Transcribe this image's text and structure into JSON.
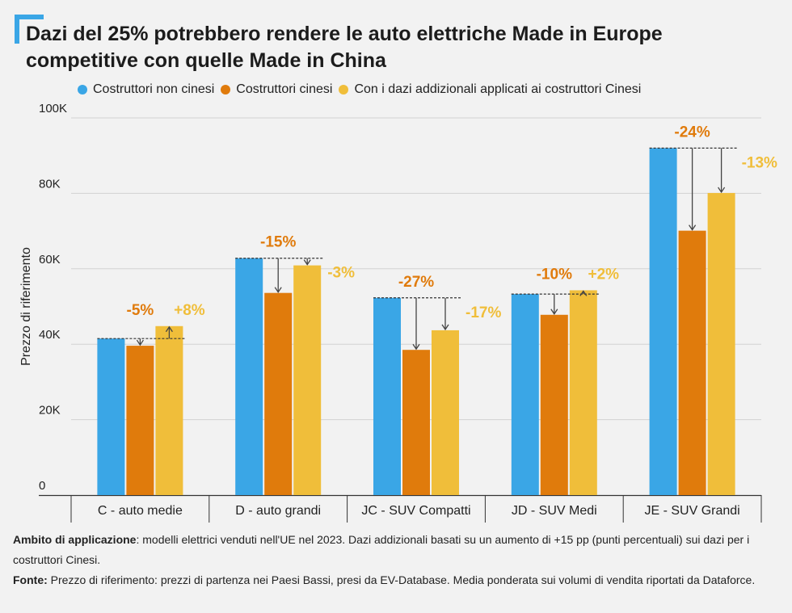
{
  "title": "Dazi del 25% potrebbero rendere le auto elettriche Made in Europe competitive con quelle Made in China",
  "colors": {
    "accent": "#3aa6e6",
    "series": [
      "#3aa6e6",
      "#e07b0c",
      "#f0be3a"
    ],
    "pct_orange": "#e07b0c",
    "pct_yellow": "#f0be3a"
  },
  "chart_data": {
    "type": "bar",
    "title": "Dazi del 25% potrebbero rendere le auto elettriche Made in Europe competitive con quelle Made in China",
    "ylabel": "Prezzo di riferimento",
    "xlabel": "",
    "ylim": [
      0,
      100000
    ],
    "yticks": [
      0,
      20000,
      40000,
      60000,
      80000,
      100000
    ],
    "ytick_labels": [
      "0",
      "20K",
      "40K",
      "60K",
      "80K",
      "100K"
    ],
    "grid": true,
    "legend_position": "top",
    "categories": [
      "C - auto medie",
      "D - auto grandi",
      "JC - SUV Compatti",
      "JD - SUV Medi",
      "JE - SUV Grandi"
    ],
    "series": [
      {
        "name": "Costruttori non cinesi",
        "values": [
          41500,
          62800,
          52300,
          53300,
          92000
        ]
      },
      {
        "name": "Costruttori cinesi",
        "values": [
          39600,
          53600,
          38500,
          47800,
          70100
        ]
      },
      {
        "name": "Con i dazi addizionali applicati ai costruttori Cinesi",
        "values": [
          44800,
          60900,
          43700,
          54300,
          80100
        ]
      }
    ],
    "annotations_cinesi": [
      "-5%",
      "-15%",
      "-27%",
      "-10%",
      "-24%"
    ],
    "annotations_dazi": [
      "+8%",
      "-3%",
      "-17%",
      "+2%",
      "-13%"
    ]
  },
  "footer": {
    "scope_label": "Ambito di applicazione",
    "scope_text": ": modelli elettrici venduti nell'UE nel 2023. Dazi addizionali basati su un aumento di +15 pp (punti percentuali) sui dazi per i costruttori Cinesi.",
    "source_label": "Fonte:",
    "source_text": " Prezzo di riferimento: prezzi di partenza nei Paesi Bassi, presi da EV-Database. Media ponderata sui volumi di vendita riportati da Dataforce."
  }
}
